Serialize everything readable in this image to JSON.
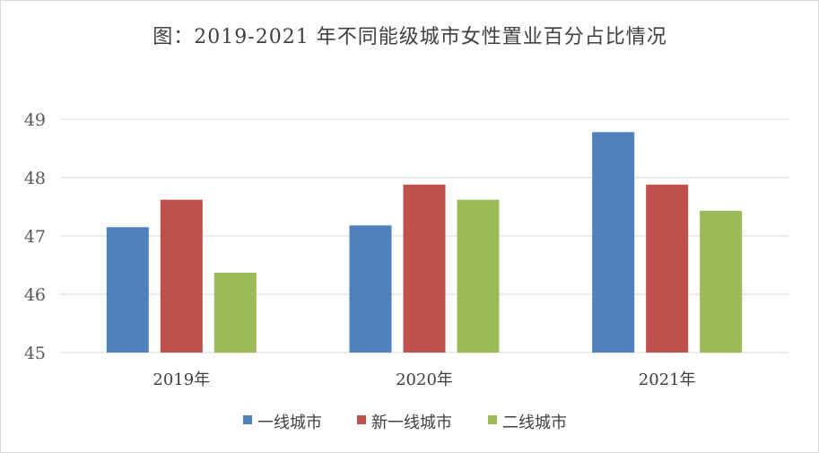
{
  "chart_data": {
    "type": "bar",
    "title": "图：2019-2021 年不同能级城市女性置业百分占比情况",
    "categories": [
      "2019年",
      "2020年",
      "2021年"
    ],
    "series": [
      {
        "name": "一线城市",
        "color": "#4f81bd",
        "values": [
          47.15,
          47.18,
          48.78
        ]
      },
      {
        "name": "新一线城市",
        "color": "#c0504d",
        "values": [
          47.62,
          47.88,
          47.88
        ]
      },
      {
        "name": "二线城市",
        "color": "#9bbb59",
        "values": [
          46.37,
          47.62,
          47.43
        ]
      }
    ],
    "ylim": [
      45,
      49
    ],
    "yticks": [
      "45",
      "46",
      "47",
      "48",
      "49"
    ],
    "xlabel": "",
    "ylabel": "",
    "grid": true,
    "legend": "bottom"
  }
}
